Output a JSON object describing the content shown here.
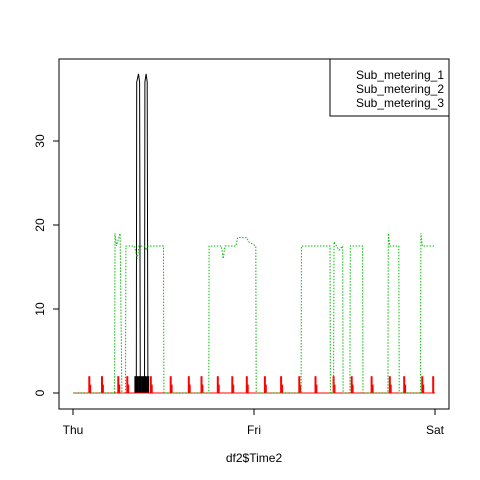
{
  "chart_data": {
    "type": "line",
    "title": "",
    "xlabel": "df2$Time2",
    "ylabel": "",
    "x_ticks": [
      "Thu",
      "Fri",
      "Sat"
    ],
    "x_range_days": [
      0,
      2
    ],
    "y_ticks": [
      0,
      10,
      20,
      30
    ],
    "ylim": [
      0,
      38
    ],
    "grid": false,
    "legend": {
      "placement": "top-right"
    },
    "series": [
      {
        "name": "Sub_metering_1",
        "color": "#000000",
        "style": "solid",
        "points": [
          [
            0.0,
            0
          ],
          [
            0.35,
            0
          ],
          [
            0.352,
            37
          ],
          [
            0.362,
            38
          ],
          [
            0.368,
            37
          ],
          [
            0.372,
            0
          ],
          [
            0.395,
            0
          ],
          [
            0.397,
            37
          ],
          [
            0.404,
            38
          ],
          [
            0.41,
            37
          ],
          [
            0.414,
            0
          ],
          [
            2.0,
            0
          ]
        ],
        "spikes": [
          [
            0.345,
            2
          ],
          [
            0.355,
            2
          ],
          [
            0.365,
            2
          ],
          [
            0.375,
            2
          ],
          [
            0.385,
            2
          ],
          [
            0.395,
            2
          ],
          [
            0.405,
            2
          ],
          [
            0.415,
            2
          ]
        ]
      },
      {
        "name": "Sub_metering_2",
        "color": "#ff0000",
        "style": "solid",
        "points": [
          [
            0.0,
            0
          ],
          [
            2.0,
            0
          ]
        ],
        "spikes": [
          [
            0.09,
            2
          ],
          [
            0.095,
            1
          ],
          [
            0.16,
            2
          ],
          [
            0.165,
            1
          ],
          [
            0.25,
            2
          ],
          [
            0.255,
            1
          ],
          [
            0.3,
            2
          ],
          [
            0.305,
            1
          ],
          [
            0.43,
            2
          ],
          [
            0.435,
            1
          ],
          [
            0.54,
            2
          ],
          [
            0.545,
            1
          ],
          [
            0.64,
            2
          ],
          [
            0.645,
            1
          ],
          [
            0.71,
            2
          ],
          [
            0.715,
            1
          ],
          [
            0.8,
            2
          ],
          [
            0.805,
            1
          ],
          [
            0.88,
            2
          ],
          [
            0.885,
            1
          ],
          [
            0.96,
            2
          ],
          [
            0.965,
            1
          ],
          [
            1.06,
            2
          ],
          [
            1.065,
            1
          ],
          [
            1.15,
            2
          ],
          [
            1.155,
            1
          ],
          [
            1.25,
            2
          ],
          [
            1.255,
            1
          ],
          [
            1.34,
            2
          ],
          [
            1.345,
            1
          ],
          [
            1.44,
            2
          ],
          [
            1.445,
            1
          ],
          [
            1.54,
            2
          ],
          [
            1.545,
            1
          ],
          [
            1.65,
            2
          ],
          [
            1.655,
            1
          ],
          [
            1.75,
            2
          ],
          [
            1.755,
            1
          ],
          [
            1.83,
            2
          ],
          [
            1.835,
            1
          ],
          [
            1.93,
            2
          ],
          [
            1.935,
            1
          ],
          [
            1.99,
            2
          ]
        ]
      },
      {
        "name": "Sub_metering_3",
        "color": "#00bb00",
        "style": "dotted",
        "points": [
          [
            0.0,
            0
          ],
          [
            0.23,
            0
          ],
          [
            0.232,
            19
          ],
          [
            0.24,
            17.5
          ],
          [
            0.26,
            19
          ],
          [
            0.27,
            0
          ],
          [
            0.29,
            0
          ],
          [
            0.292,
            17.5
          ],
          [
            0.34,
            17.5
          ],
          [
            0.355,
            16
          ],
          [
            0.365,
            17.5
          ],
          [
            0.395,
            17.5
          ],
          [
            0.405,
            17
          ],
          [
            0.415,
            17.5
          ],
          [
            0.5,
            17.5
          ],
          [
            0.502,
            0
          ],
          [
            0.75,
            0
          ],
          [
            0.752,
            17.5
          ],
          [
            0.82,
            17.5
          ],
          [
            0.83,
            16
          ],
          [
            0.84,
            17.5
          ],
          [
            0.9,
            17.5
          ],
          [
            0.91,
            18.5
          ],
          [
            0.96,
            18.5
          ],
          [
            0.97,
            18
          ],
          [
            1.01,
            17.5
          ],
          [
            1.012,
            0
          ],
          [
            1.26,
            0
          ],
          [
            1.262,
            17.5
          ],
          [
            1.42,
            17.5
          ],
          [
            1.422,
            0
          ],
          [
            1.44,
            0
          ],
          [
            1.442,
            18
          ],
          [
            1.47,
            17
          ],
          [
            1.49,
            17.5
          ],
          [
            1.492,
            0
          ],
          [
            1.53,
            0
          ],
          [
            1.532,
            17.5
          ],
          [
            1.6,
            17.5
          ],
          [
            1.602,
            0
          ],
          [
            1.74,
            0
          ],
          [
            1.742,
            19
          ],
          [
            1.75,
            17.5
          ],
          [
            1.8,
            17.5
          ],
          [
            1.802,
            0
          ],
          [
            1.92,
            0
          ],
          [
            1.922,
            19
          ],
          [
            1.93,
            17.5
          ],
          [
            2.0,
            17.5
          ]
        ]
      }
    ]
  }
}
